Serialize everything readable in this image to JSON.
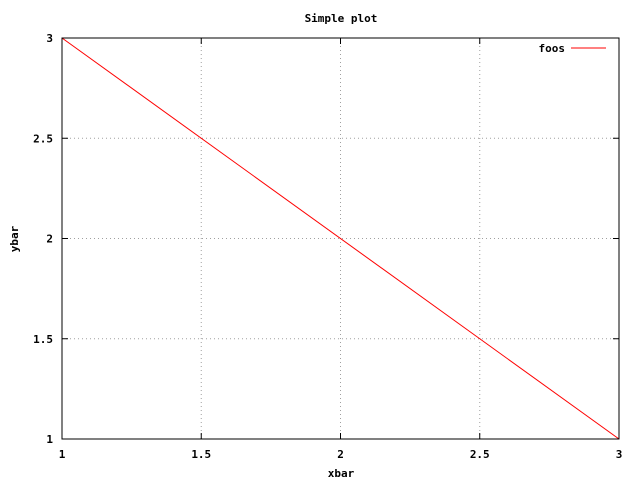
{
  "chart_data": {
    "type": "line",
    "title": "Simple plot",
    "xlabel": "xbar",
    "ylabel": "ybar",
    "xlim": [
      1,
      3
    ],
    "ylim": [
      1,
      3
    ],
    "x_ticks": [
      1,
      1.5,
      2,
      2.5,
      3
    ],
    "y_ticks": [
      1,
      1.5,
      2,
      2.5,
      3
    ],
    "x_tick_labels": [
      "1",
      "1.5",
      "2",
      "2.5",
      "3"
    ],
    "y_tick_labels": [
      "1",
      "1.5",
      "2",
      "2.5",
      "3"
    ],
    "grid": true,
    "legend_position": "top-right",
    "series": [
      {
        "name": "foos",
        "color": "#ff0000",
        "x": [
          1,
          3
        ],
        "y": [
          3,
          1
        ]
      }
    ]
  }
}
